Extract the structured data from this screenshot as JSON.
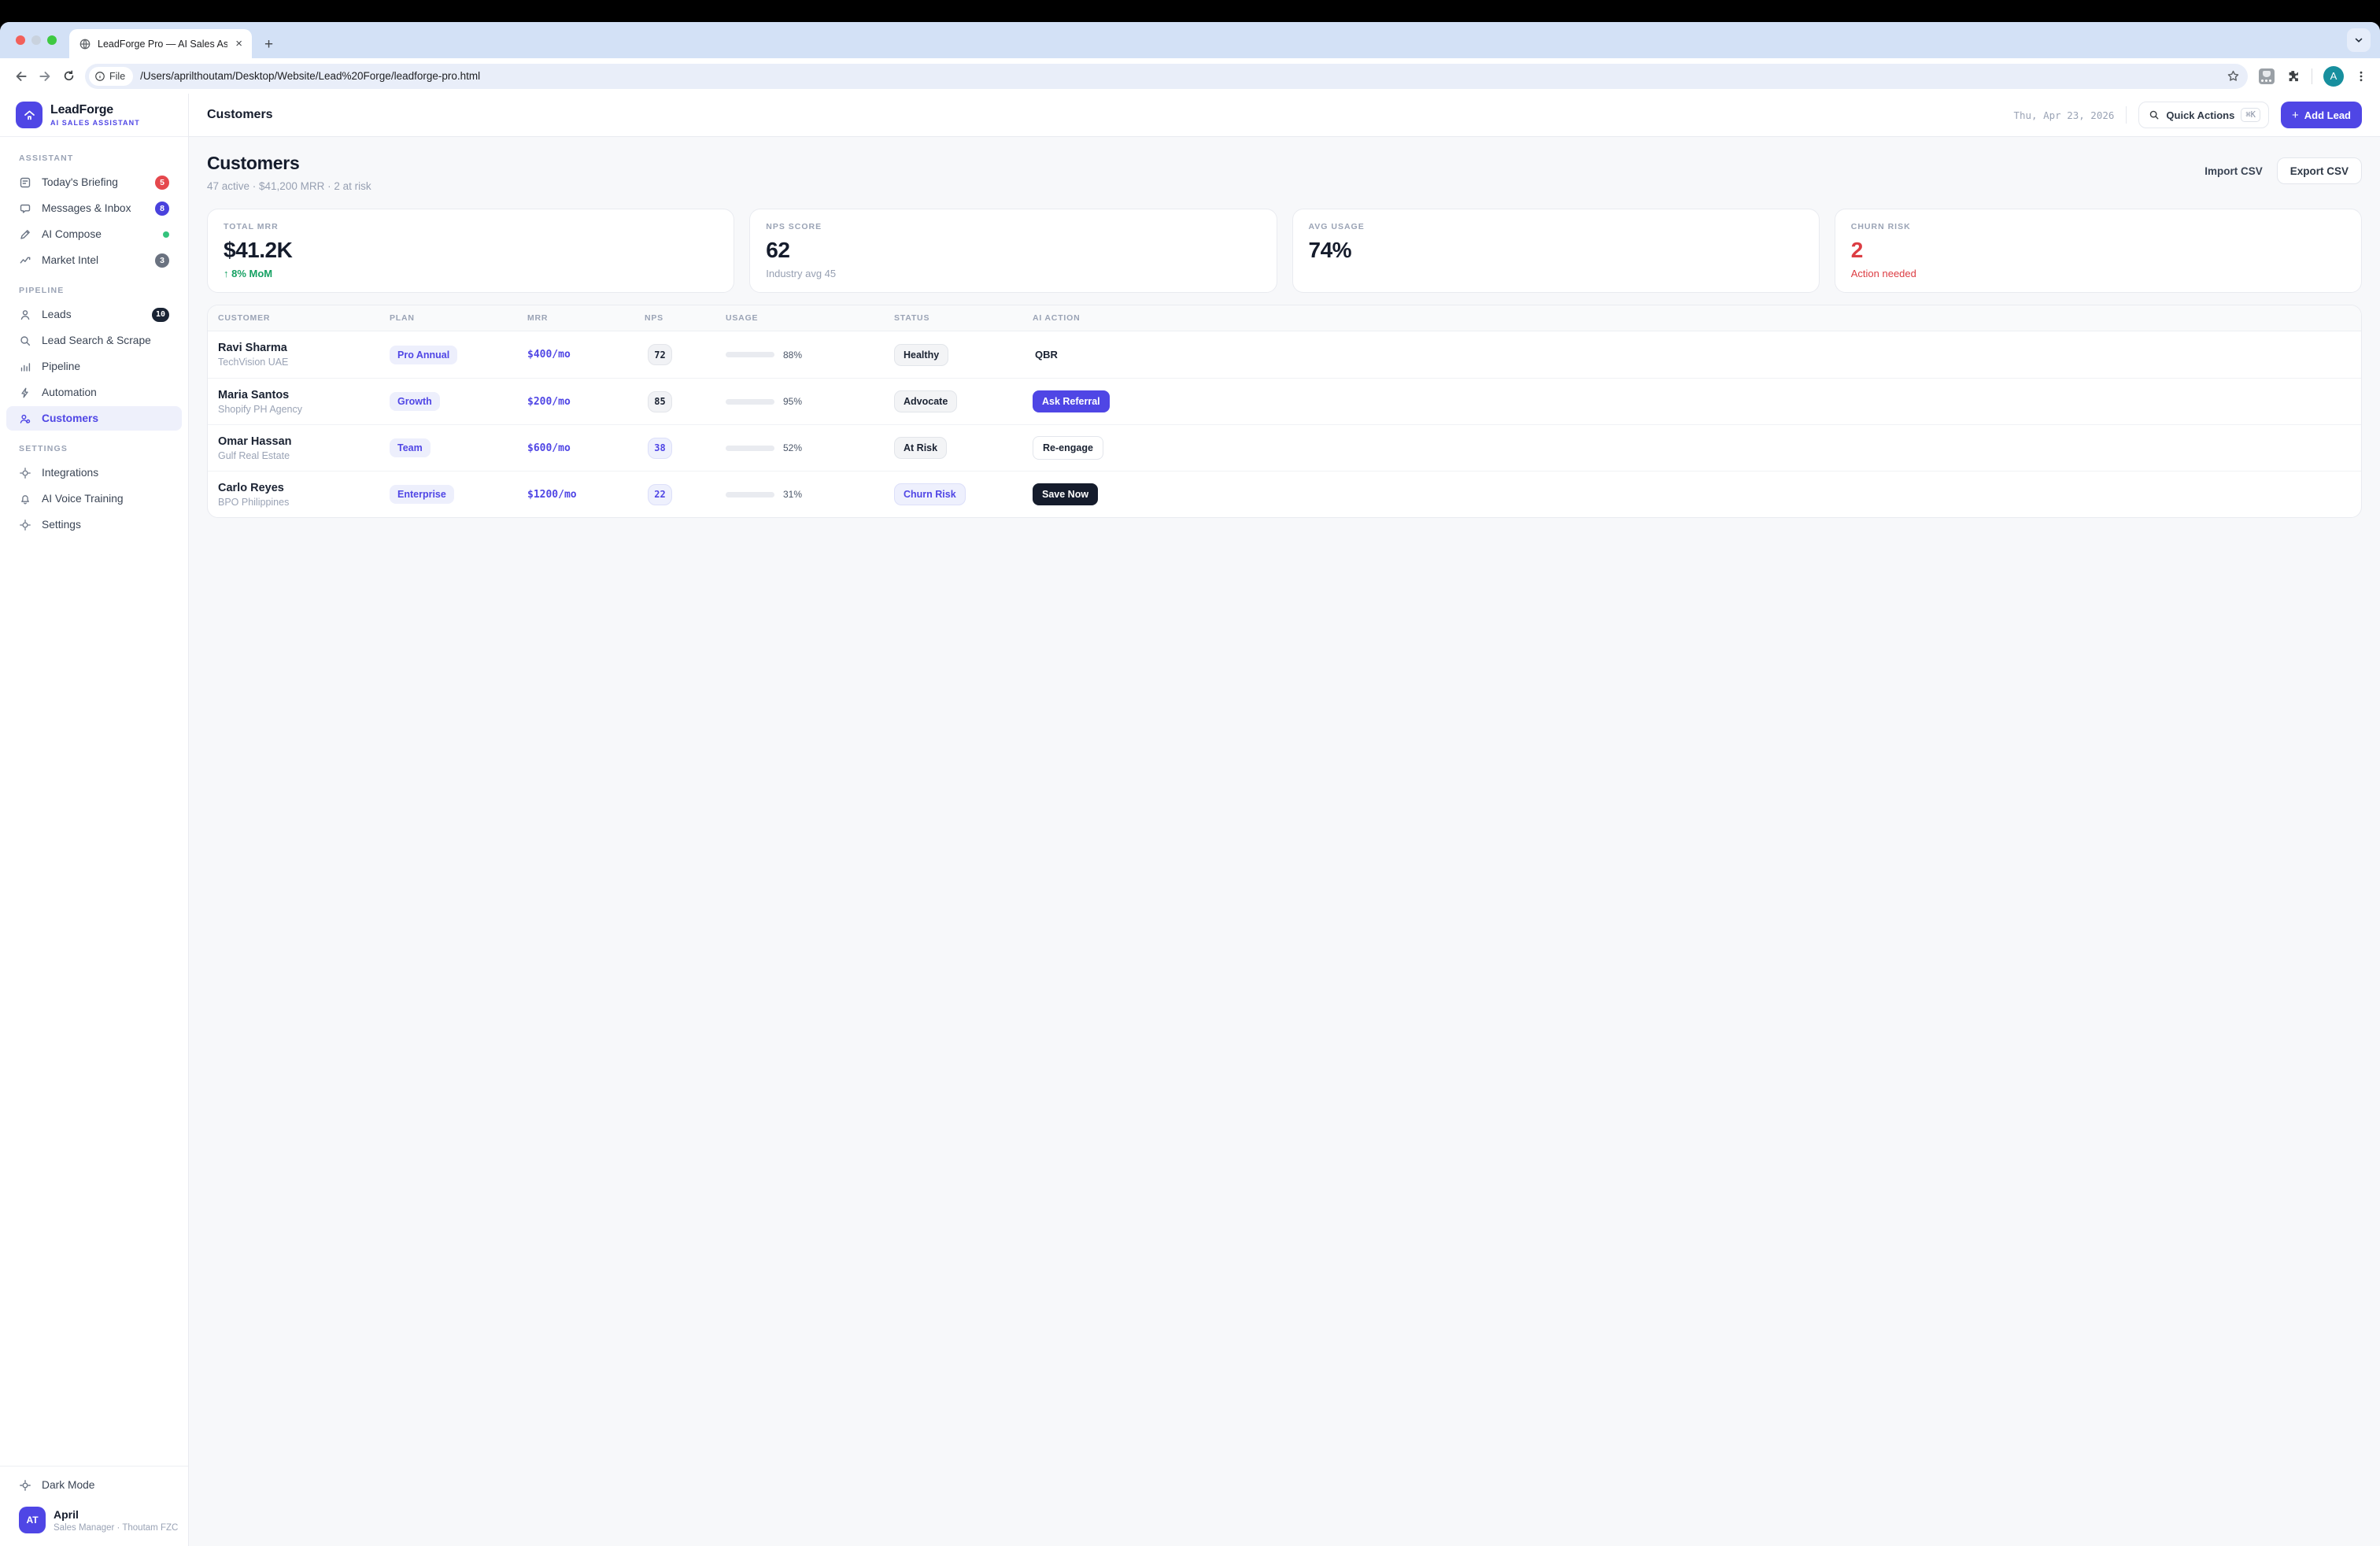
{
  "browser": {
    "tab_title": "LeadForge Pro — AI Sales Ass",
    "close_tab": "×",
    "new_tab": "+",
    "file_label": "File",
    "url": "/Users/aprilthoutam/Desktop/Website/Lead%20Forge/leadforge-pro.html",
    "profile_letter": "A"
  },
  "sidebar": {
    "brand": {
      "name": "LeadForge",
      "tagline": "AI SALES ASSISTANT"
    },
    "sections": [
      {
        "label": "ASSISTANT",
        "items": [
          {
            "label": "Today's Briefing",
            "icon": "briefing",
            "badge": "5",
            "badge_type": "red"
          },
          {
            "label": "Messages & Inbox",
            "icon": "messages",
            "badge": "8",
            "badge_type": "indigo"
          },
          {
            "label": "AI Compose",
            "icon": "compose",
            "badge": "",
            "badge_type": "green-dot"
          },
          {
            "label": "Market Intel",
            "icon": "market",
            "badge": "3",
            "badge_type": "gray"
          }
        ]
      },
      {
        "label": "PIPELINE",
        "items": [
          {
            "label": "Leads",
            "icon": "leads",
            "badge": "10",
            "badge_type": "navy"
          },
          {
            "label": "Lead Search & Scrape",
            "icon": "search"
          },
          {
            "label": "Pipeline",
            "icon": "pipeline"
          },
          {
            "label": "Automation",
            "icon": "automation"
          },
          {
            "label": "Customers",
            "icon": "customers",
            "active": true
          }
        ]
      },
      {
        "label": "SETTINGS",
        "items": [
          {
            "label": "Integrations",
            "icon": "target"
          },
          {
            "label": "AI Voice Training",
            "icon": "bell"
          },
          {
            "label": "Settings",
            "icon": "target"
          }
        ]
      }
    ],
    "footer": {
      "dark_mode_label": "Dark Mode",
      "user": {
        "initials": "AT",
        "name": "April",
        "role": "Sales Manager · Thoutam FZC"
      }
    }
  },
  "topbar": {
    "title": "Customers",
    "date": "Thu, Apr 23, 2026",
    "quick_actions": "Quick Actions",
    "kbd": "⌘K",
    "add_lead": "Add Lead"
  },
  "page": {
    "title": "Customers",
    "subtitle": "47 active · $41,200 MRR · 2 at risk",
    "import_label": "Import CSV",
    "export_label": "Export CSV",
    "stats": [
      {
        "label": "TOTAL MRR",
        "value": "$41.2K",
        "value_color": "navy",
        "delta": "↑ 8% MoM",
        "delta_color": "green"
      },
      {
        "label": "NPS SCORE",
        "value": "62",
        "value_color": "navy",
        "delta": "Industry avg 45",
        "delta_color": "gray"
      },
      {
        "label": "AVG USAGE",
        "value": "74%",
        "value_color": "navy",
        "delta": "",
        "delta_color": "gray"
      },
      {
        "label": "CHURN RISK",
        "value": "2",
        "value_color": "red",
        "delta": "Action needed",
        "delta_color": "red"
      }
    ],
    "table": {
      "columns": [
        "CUSTOMER",
        "PLAN",
        "MRR",
        "NPS",
        "USAGE",
        "STATUS",
        "AI ACTION"
      ],
      "rows": [
        {
          "name": "Ravi Sharma",
          "company": "TechVision UAE",
          "plan": "Pro Annual",
          "mrr": "$400/mo",
          "nps": "72",
          "nps_style": "gray",
          "usage_pct": 88,
          "usage_label": "88%",
          "usage_color": "#4a40e0",
          "status": "Healthy",
          "status_style": "gray",
          "action": "QBR",
          "action_style": "text"
        },
        {
          "name": "Maria Santos",
          "company": "Shopify PH Agency",
          "plan": "Growth",
          "mrr": "$200/mo",
          "nps": "85",
          "nps_style": "gray",
          "usage_pct": 95,
          "usage_label": "95%",
          "usage_color": "#4a40e0",
          "status": "Advocate",
          "status_style": "gray",
          "action": "Ask Referral",
          "action_style": "primary"
        },
        {
          "name": "Omar Hassan",
          "company": "Gulf Real Estate",
          "plan": "Team",
          "mrr": "$600/mo",
          "nps": "38",
          "nps_style": "purple",
          "usage_pct": 52,
          "usage_label": "52%",
          "usage_color": "#6b7280",
          "status": "At Risk",
          "status_style": "gray",
          "action": "Re-engage",
          "action_style": "outline"
        },
        {
          "name": "Carlo Reyes",
          "company": "BPO Philippines",
          "plan": "Enterprise",
          "mrr": "$1200/mo",
          "nps": "22",
          "nps_style": "purple",
          "usage_pct": 31,
          "usage_label": "31%",
          "usage_color": "#151c2c",
          "status": "Churn Risk",
          "status_style": "purple",
          "action": "Save Now",
          "action_style": "dark"
        }
      ]
    }
  }
}
